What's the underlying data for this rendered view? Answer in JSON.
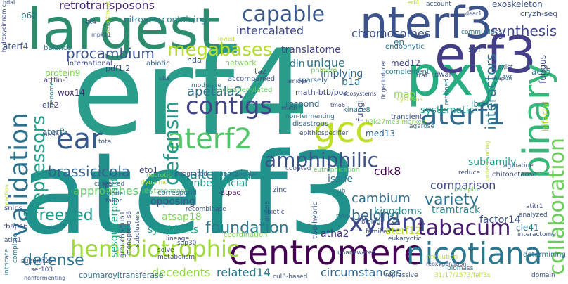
{
  "words": [
    {
      "id": "aterf3",
      "text": "aterf3",
      "color": "#21918c"
    },
    {
      "id": "erf4",
      "text": "erf4",
      "color": "#2a9d8a"
    },
    {
      "id": "largest",
      "text": "largest",
      "color": "#2c8c6d"
    },
    {
      "id": "nterf3",
      "text": "nterf3",
      "color": "#3b528b"
    },
    {
      "id": "pxy",
      "text": "pxy",
      "color": "#27ad81"
    },
    {
      "id": "erf3",
      "text": "erf3",
      "color": "#433e85"
    },
    {
      "id": "binary",
      "text": "binary",
      "color": "#35b779"
    },
    {
      "id": "centromere",
      "text": "centromere",
      "color": "#440154"
    },
    {
      "id": "gcc",
      "text": "gcc",
      "color": "#bddf26"
    },
    {
      "id": "aterf1",
      "text": "aterf1",
      "color": "#31688e"
    },
    {
      "id": "aterf2",
      "text": "aterf2",
      "color": "#52c569"
    },
    {
      "id": "ear",
      "text": "ear",
      "color": "#375a8c"
    },
    {
      "id": "nicotiana",
      "text": "nicotiana",
      "color": "#2a768e"
    },
    {
      "id": "tabacum",
      "text": "tabacum",
      "color": "#481b6d"
    },
    {
      "id": "hemibiotrophic",
      "text": "hemibiotrophic",
      "color": "#a0da39"
    },
    {
      "id": "amphiphilic",
      "text": "amphiphilic",
      "color": "#3b528b"
    },
    {
      "id": "validation",
      "text": "validation",
      "color": "#2c728e"
    },
    {
      "id": "capable",
      "text": "capable",
      "color": "#38588c"
    },
    {
      "id": "collaboration",
      "text": "collaboration",
      "color": "#6ccd5a"
    },
    {
      "id": "megabases",
      "text": "megabases",
      "color": "#b5de2b"
    },
    {
      "id": "contigs",
      "text": "contigs",
      "color": "#414487"
    },
    {
      "id": "xylem",
      "text": "xylem",
      "color": "#3e4989"
    },
    {
      "id": "foundation",
      "text": "foundation",
      "color": "#297b8e"
    },
    {
      "id": "procambium",
      "text": "procambium",
      "color": "#3b528b"
    },
    {
      "id": "repressors",
      "text": "repressors",
      "color": "#1f9e89"
    },
    {
      "id": "defensin",
      "text": "defensin",
      "color": "#1f9a8a"
    },
    {
      "id": "screened",
      "text": "screened",
      "color": "#1f988b"
    },
    {
      "id": "brassicicola",
      "text": "brassicicola",
      "color": "#33638d"
    },
    {
      "id": "defense",
      "text": "defense",
      "color": "#2d708e"
    },
    {
      "id": "interactors",
      "text": "interactors",
      "color": "#2a788e"
    },
    {
      "id": "intercalated",
      "text": "intercalated",
      "color": "#3e4989"
    },
    {
      "id": "synthesis",
      "text": "synthesis",
      "color": "#404688"
    },
    {
      "id": "apetala2",
      "text": "apetala2",
      "color": "#2d708e"
    },
    {
      "id": "variety",
      "text": "variety",
      "color": "#2c728e"
    },
    {
      "id": "alternaria",
      "text": "alternaria",
      "color": "#23898e"
    },
    {
      "id": "retrotransposons",
      "text": "retrotransposons",
      "color": "#482878"
    },
    {
      "id": "chromosomes",
      "text": "chromosomes",
      "color": "#3b528b"
    },
    {
      "id": "cambium",
      "text": "cambium",
      "color": "#2e6e8e"
    },
    {
      "id": "belong",
      "text": "belong",
      "color": "#31688e"
    },
    {
      "id": "nitrogen-containing",
      "text": "nitrogen-containing",
      "color": "#2a788e"
    },
    {
      "id": "translatome",
      "text": "translatome",
      "color": "#414487"
    },
    {
      "id": "unique",
      "text": "unique",
      "color": "#2c728e"
    },
    {
      "id": "approaches",
      "text": "approaches",
      "color": "#5ec962"
    },
    {
      "id": "comparison",
      "text": "comparison",
      "color": "#3e4989"
    },
    {
      "id": "nonbeneficial",
      "text": "nonbeneficial",
      "color": "#1f988b"
    },
    {
      "id": "kingdoms",
      "text": "kingdoms",
      "color": "#26828e"
    },
    {
      "id": "opposing",
      "text": "opposing",
      "color": "#3b528b"
    },
    {
      "id": "symbionts",
      "text": "symbionts",
      "color": "#1fa188"
    },
    {
      "id": "atsap18",
      "text": "atsap18",
      "color": "#7ad151"
    },
    {
      "id": "sesquiterpenoid",
      "text": "sesquiterpenoid",
      "color": "#22a884"
    },
    {
      "id": "atha2",
      "text": "atha2",
      "color": "#46337e"
    },
    {
      "id": "decedents",
      "text": "decedents",
      "color": "#90d743"
    },
    {
      "id": "related14",
      "text": "related14",
      "color": "#2a788e"
    },
    {
      "id": "circumstances",
      "text": "circumstances",
      "color": "#32648e"
    },
    {
      "id": "coumaroyltransferase",
      "text": "coumaroyltransferase",
      "color": "#2d708e"
    },
    {
      "id": "tramtrack",
      "text": "tramtrack",
      "color": "#25858e"
    },
    {
      "id": "factor14",
      "text": "factor14",
      "color": "#3b528b"
    },
    {
      "id": "systematic",
      "text": "systematic",
      "color": "#1f9e89"
    },
    {
      "id": "subfamily",
      "text": "subfamily",
      "color": "#1f9e89"
    },
    {
      "id": "aterf12",
      "text": "aterf12",
      "color": "#b5de2b"
    },
    {
      "id": "cdk8",
      "text": "cdk8",
      "color": "#440154"
    },
    {
      "id": "issue",
      "text": "issue",
      "color": "#2c728e"
    },
    {
      "id": "implying",
      "text": "implying",
      "color": "#32648e"
    },
    {
      "id": "dln",
      "text": "dln",
      "color": "#2a788e"
    },
    {
      "id": "b1a",
      "text": "b1a",
      "color": "#2c728e"
    },
    {
      "id": "respond",
      "text": "respond",
      "color": "#31688e"
    },
    {
      "id": "fungi",
      "text": "fungi",
      "color": "#3e4989"
    },
    {
      "id": "map",
      "text": "map",
      "color": "#8fd744"
    },
    {
      "id": "med12",
      "text": "med12",
      "color": "#404688"
    },
    {
      "id": "med13",
      "text": "med13",
      "color": "#32648e"
    },
    {
      "id": "aterf5",
      "text": "aterf5",
      "color": "#2d708e"
    },
    {
      "id": "aterf4",
      "text": "aterf4",
      "color": "#3b528b"
    },
    {
      "id": "wox14",
      "text": "wox14",
      "color": "#472d7b"
    },
    {
      "id": "protein9",
      "text": "protein9",
      "color": "#7ad151"
    },
    {
      "id": "eto1",
      "text": "eto1",
      "color": "#3e4989"
    },
    {
      "id": "snf",
      "text": "snf",
      "color": "#3b528b"
    },
    {
      "id": "en",
      "text": "en",
      "color": "#2c728e"
    },
    {
      "id": "lbd4",
      "text": "lbd4",
      "color": "#2a788e"
    },
    {
      "id": "acs5",
      "text": "acs5",
      "color": "#2a788e"
    },
    {
      "id": "fungus",
      "text": "fungus",
      "color": "#3e4989"
    },
    {
      "id": "bifacial",
      "text": "bifacial",
      "color": "#b5de2b"
    },
    {
      "id": "cle41",
      "text": "cle41",
      "color": "#2c728e"
    },
    {
      "id": "p62",
      "text": "p62",
      "color": "#2a788e"
    },
    {
      "id": "exoskeleton",
      "text": "exoskeleton",
      "color": "#3b528b"
    },
    {
      "id": "cryzh-seq",
      "text": "cryzh-seq",
      "color": "#3b528b"
    },
    {
      "id": "ein2",
      "text": "ein2",
      "color": "#3e4989"
    },
    {
      "id": "pdf1.2",
      "text": "pdf1.2",
      "color": "#3e4989"
    },
    {
      "id": "hda",
      "text": "hda",
      "color": "#3b528b"
    },
    {
      "id": "network",
      "text": "network",
      "color": "#7ad151"
    },
    {
      "id": "abiotic",
      "text": "abiotic",
      "color": "#32648e"
    },
    {
      "id": "balance",
      "text": "balance",
      "color": "#2a788e"
    },
    {
      "id": "international",
      "text": "international",
      "color": "#3e4989"
    },
    {
      "id": "attfin-1",
      "text": "attfin-1",
      "color": "#433e85"
    },
    {
      "id": "accompanied",
      "text": "accompanied",
      "color": "#3b528b"
    },
    {
      "id": "modulate",
      "text": "modulate",
      "color": "#2a788e"
    },
    {
      "id": "sparsely",
      "text": "sparsely",
      "color": "#32648e"
    },
    {
      "id": "phloem",
      "text": "phloem",
      "color": "#7ad151"
    },
    {
      "id": "taz",
      "text": "taz",
      "color": "#3b528b"
    },
    {
      "id": "math-btb/poz",
      "text": "math-btb/poz",
      "color": "#3e4989"
    },
    {
      "id": "polyadenylated",
      "text": "polyadenylated",
      "color": "#5ec962"
    },
    {
      "id": "endophytic",
      "text": "endophytic",
      "color": "#2c728e"
    },
    {
      "id": "complement",
      "text": "complement",
      "color": "#2a788e"
    },
    {
      "id": "dwarf",
      "text": "dwarf",
      "color": "#3e4989"
    },
    {
      "id": "retained",
      "text": "retained",
      "color": "#2c728e"
    },
    {
      "id": "traf",
      "text": "traf",
      "color": "#3b528b"
    },
    {
      "id": "communities",
      "text": "communities",
      "color": "#2c728e"
    },
    {
      "id": "exist",
      "text": "exist",
      "color": "#3b528b"
    },
    {
      "id": "tyr",
      "text": "tyr",
      "color": "#2a788e"
    },
    {
      "id": "account",
      "text": "account",
      "color": "#3b528b"
    },
    {
      "id": "transient",
      "text": "transient",
      "color": "#3b528b"
    },
    {
      "id": "systems",
      "text": "systems",
      "color": "#b5de2b"
    },
    {
      "id": "kinase8",
      "text": "kinase8",
      "color": "#2d708e"
    },
    {
      "id": "h3k27me3-marked",
      "text": "h3k27me3-marked",
      "color": "#7ad151"
    },
    {
      "id": "agarose",
      "text": "agarose",
      "color": "#2a788e"
    },
    {
      "id": "disastrous",
      "text": "disastrous",
      "color": "#32648e"
    },
    {
      "id": "epithiospecifier",
      "text": "epithiospecifier",
      "color": "#3b528b"
    },
    {
      "id": "phytonormone",
      "text": "phytonormone",
      "color": "#5ec962"
    },
    {
      "id": "non-fermenting",
      "text": "non-fermenting",
      "color": "#2a788e"
    },
    {
      "id": "coopted",
      "text": "coopted",
      "color": "#3b528b"
    },
    {
      "id": "eutrophication",
      "text": "eutrophication",
      "color": "#5ec962"
    },
    {
      "id": "integrated",
      "text": "integrated",
      "color": "#3e4989"
    },
    {
      "id": "nonvascular",
      "text": "nonvascular",
      "color": "#2c728e"
    },
    {
      "id": "necrotic",
      "text": "necrotic",
      "color": "#7ad151"
    },
    {
      "id": "dynamic",
      "text": "dynamic",
      "color": "#b5de2b"
    },
    {
      "id": "conferred",
      "text": "conferred",
      "color": "#32648e"
    },
    {
      "id": "model",
      "text": "model",
      "color": "#2a788e"
    },
    {
      "id": "tailor",
      "text": "tailor",
      "color": "#3b528b"
    },
    {
      "id": "correspond",
      "text": "correspond",
      "color": "#32648e"
    },
    {
      "id": "atpao",
      "text": "atpao",
      "color": "#440154"
    },
    {
      "id": "zinc",
      "text": "zinc",
      "color": "#3b528b"
    },
    {
      "id": "biotic",
      "text": "biotic",
      "color": "#3e4989"
    },
    {
      "id": "recombinase",
      "text": "recombinase",
      "color": "#3b528b"
    },
    {
      "id": "ub",
      "text": "ub",
      "color": "#2a788e"
    },
    {
      "id": "reduce",
      "text": "reduce",
      "color": "#3b528b"
    },
    {
      "id": "receptor",
      "text": "receptor",
      "color": "#7ad151"
    },
    {
      "id": "agmatine",
      "text": "agmatine",
      "color": "#3b528b"
    },
    {
      "id": "chitooctaose",
      "text": "chitooctaose",
      "color": "#3e4989"
    },
    {
      "id": "analyzed",
      "text": "analyzed",
      "color": "#3b528b"
    },
    {
      "id": "atitr1",
      "text": "atitr1",
      "color": "#3e4989"
    },
    {
      "id": "interactome",
      "text": "interactome",
      "color": "#3b528b"
    },
    {
      "id": "determining",
      "text": "determining",
      "color": "#2a788e"
    },
    {
      "id": "snips",
      "text": "snips",
      "color": "#3b528b"
    },
    {
      "id": "rbap46",
      "text": "rbap46",
      "color": "#3e4989"
    },
    {
      "id": "atirt1",
      "text": "atirt1",
      "color": "#3b528b"
    },
    {
      "id": "aterf7",
      "text": "aterf7",
      "color": "#2a788e"
    },
    {
      "id": "lineage",
      "text": "lineage",
      "color": "#3e4989"
    },
    {
      "id": "sap30",
      "text": "sap30",
      "color": "#3b528b"
    },
    {
      "id": "solve",
      "text": "solve",
      "color": "#3b528b"
    },
    {
      "id": "metabolism",
      "text": "metabolism",
      "color": "#3e4989"
    },
    {
      "id": "coordination",
      "text": "coordination",
      "color": "#7ad151"
    },
    {
      "id": "subunit25",
      "text": "subunit25",
      "color": "#3b528b"
    },
    {
      "id": "ser103",
      "text": "ser103",
      "color": "#3e4989"
    },
    {
      "id": "intricate",
      "text": "intricate",
      "color": "#2a788e"
    },
    {
      "id": "complete",
      "text": "complete",
      "color": "#2a788e"
    },
    {
      "id": "nonfermenting",
      "text": "nonfermenting",
      "color": "#3b528b"
    },
    {
      "id": "cul3-based",
      "text": "cul3-based",
      "color": "#3b528b"
    },
    {
      "id": "repressive",
      "text": "repressive",
      "color": "#3b528b"
    },
    {
      "id": "biomass",
      "text": "biomass",
      "color": "#2a788e"
    },
    {
      "id": "domain",
      "text": "domain",
      "color": "#3b528b"
    },
    {
      "id": "two-hybrid",
      "text": "two-hybrid",
      "color": "#3b528b"
    },
    {
      "id": "rebp",
      "text": "rebp",
      "color": "#2a788e"
    },
    {
      "id": "biology",
      "text": "biology",
      "color": "#3b528b"
    },
    {
      "id": "families",
      "text": "families",
      "color": "#3e4989"
    },
    {
      "id": "eukaryotic",
      "text": "eukaryotic",
      "color": "#3b528b"
    },
    {
      "id": "unanswered",
      "text": "unanswered",
      "color": "#3b528b"
    },
    {
      "id": "revolution",
      "text": "revolution",
      "color": "#b5de2b"
    },
    {
      "id": "subclusters",
      "text": "subclusters",
      "color": "#3b528b"
    },
    {
      "id": "groucho/tup1",
      "text": "groucho/tup1",
      "color": "#3b528b"
    },
    {
      "id": "monoptero-s6",
      "text": "monoptero-s6",
      "color": "#3e4989"
    },
    {
      "id": "fpa",
      "text": "fpa",
      "color": "#3b528b"
    },
    {
      "id": "total",
      "text": "total",
      "color": "#3b528b"
    },
    {
      "id": "atclh1",
      "text": "atclh1",
      "color": "#3e4989"
    },
    {
      "id": "genome",
      "text": "genome",
      "color": "#2a788e"
    },
    {
      "id": "hdal",
      "text": "hdal",
      "color": "#3b528b"
    },
    {
      "id": "bt4",
      "text": "bt4",
      "color": "#3e4989"
    },
    {
      "id": "mpk11",
      "text": "mpk11",
      "color": "#3b528b"
    },
    {
      "id": "assortment",
      "text": "assortment",
      "color": "#b5de2b"
    },
    {
      "id": "lowed",
      "text": "lowed",
      "color": "#b5de2b"
    },
    {
      "id": "uba",
      "text": "uba",
      "color": "#3b528b"
    },
    {
      "id": "amides",
      "text": "amides",
      "color": "#3e4989"
    },
    {
      "id": "maldi",
      "text": "maldi",
      "color": "#3b528b"
    },
    {
      "id": "tmo6",
      "text": "tmo6",
      "color": "#3e4989"
    },
    {
      "id": "inducer",
      "text": "inducer",
      "color": "#3b528b"
    },
    {
      "id": "finger",
      "text": "finger",
      "color": "#3e4989"
    },
    {
      "id": "reoxygenation",
      "text": "reoxygenation",
      "color": "#3b528b"
    },
    {
      "id": "ecosystems",
      "text": "ecosystems",
      "color": "#3e4989"
    },
    {
      "id": "maprin",
      "text": "maprin",
      "color": "#3b528b"
    },
    {
      "id": "understanding",
      "text": "understanding",
      "color": "#b5de2b"
    },
    {
      "id": "hydroxycinnamic",
      "text": "hydroxycinnamic",
      "color": "#3e4989"
    },
    {
      "id": "reaction",
      "text": "reaction",
      "color": "#b5de2b"
    },
    {
      "id": "31/17/2573/felf3s",
      "text": "31/17/2573/felf3s",
      "color": "#b5de2b"
    },
    {
      "id": "dear1",
      "text": "dear1",
      "color": "#3b528b"
    },
    {
      "id": "erf4-small",
      "text": "erf4",
      "color": "#b5de2b"
    },
    {
      "id": "prefers",
      "text": "prefers",
      "color": "#3b528b"
    }
  ]
}
